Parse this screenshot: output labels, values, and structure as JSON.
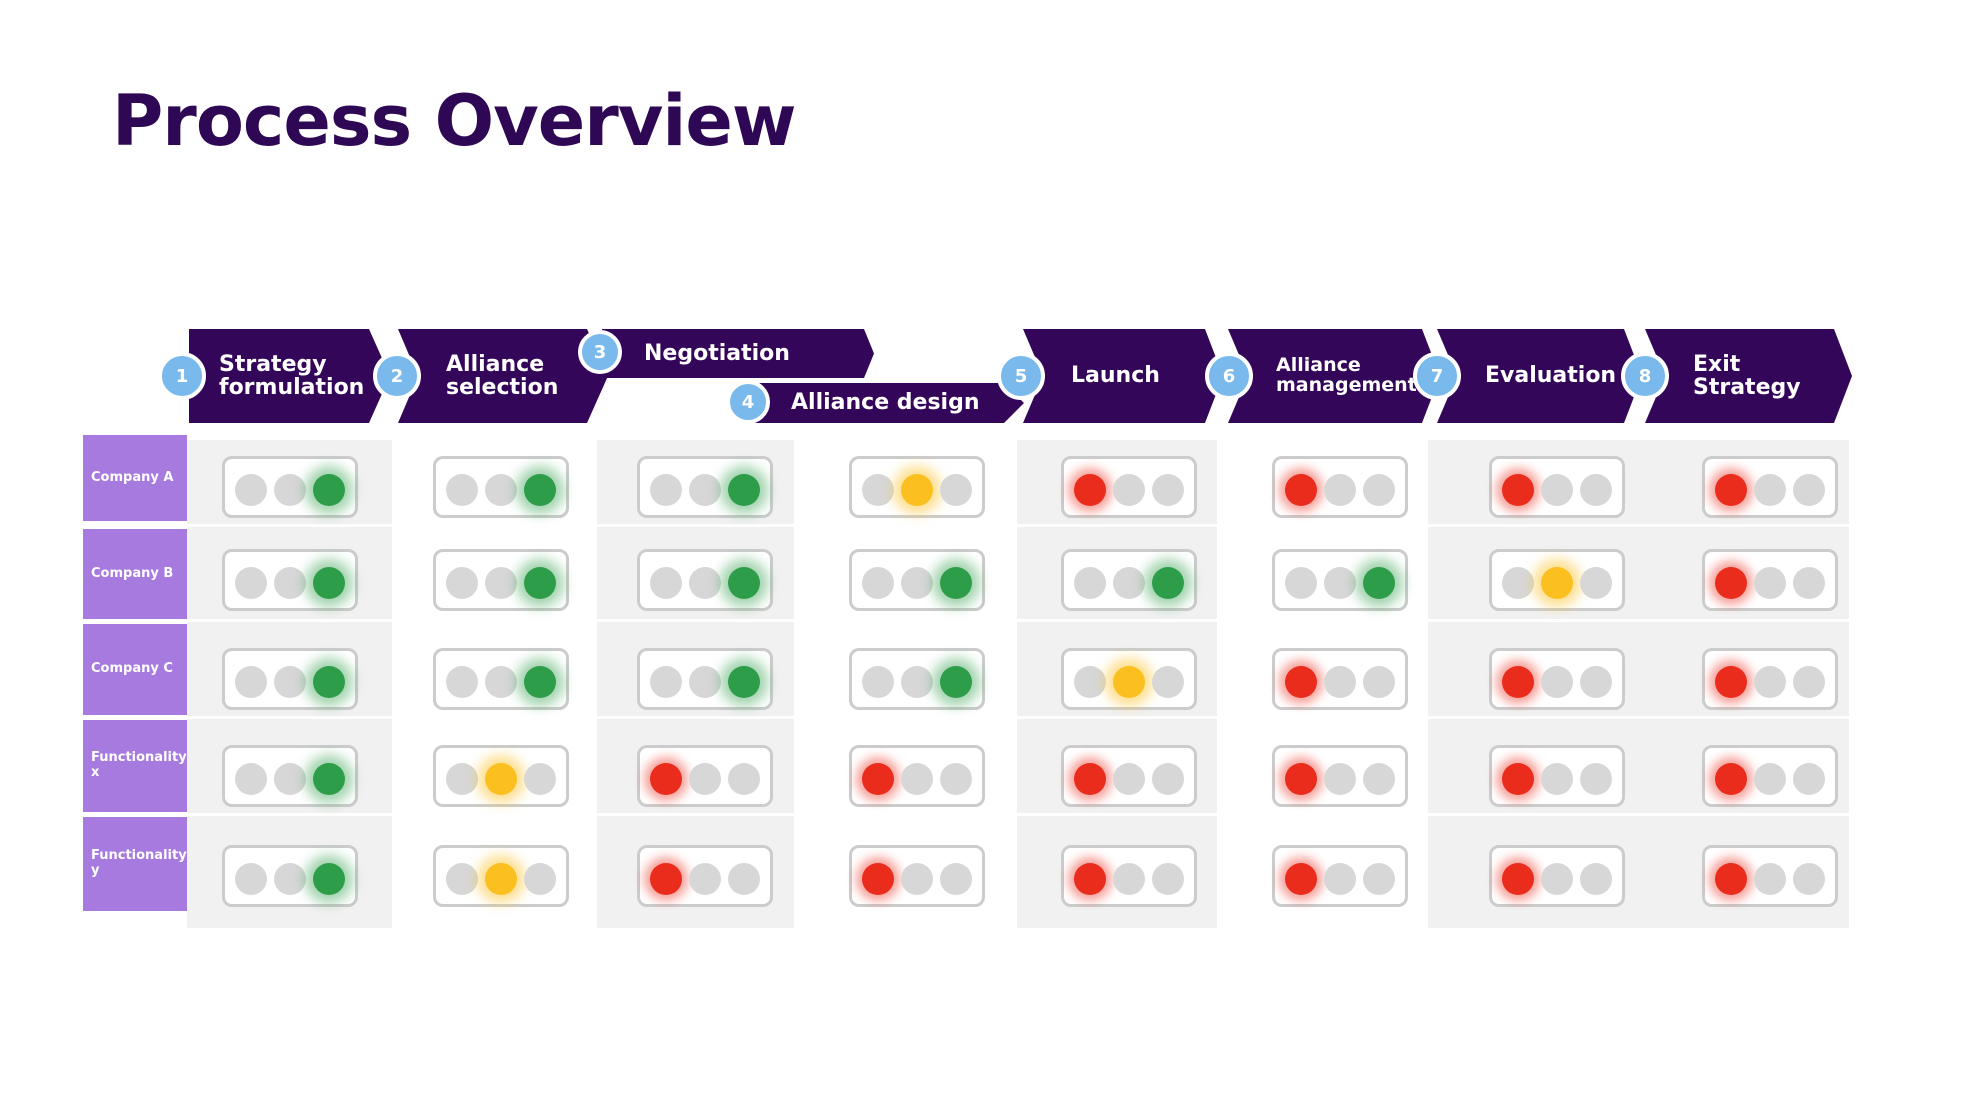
{
  "title": "Process Overview",
  "colors": {
    "chevron": "#33065a",
    "badge": "#7ab9ec",
    "row_label": "#a77ae0",
    "red": "#ea2c1c",
    "amber": "#fbbf1f",
    "green": "#2e9d4a"
  },
  "stages": [
    {
      "number": "1",
      "label": "Strategy\nformulation"
    },
    {
      "number": "2",
      "label": "Alliance\nselection"
    },
    {
      "number": "3",
      "label": "Negotiation"
    },
    {
      "number": "4",
      "label": "Alliance design"
    },
    {
      "number": "5",
      "label": "Launch"
    },
    {
      "number": "6",
      "label": "Alliance\nmanagement"
    },
    {
      "number": "7",
      "label": "Evaluation"
    },
    {
      "number": "8",
      "label": "Exit\nStrategy"
    }
  ],
  "rows": [
    {
      "label": "Company A",
      "statuses": [
        "green",
        "green",
        "green",
        "amber",
        "red",
        "red",
        "red",
        "red"
      ]
    },
    {
      "label": "Company B",
      "statuses": [
        "green",
        "green",
        "green",
        "green",
        "green",
        "green",
        "amber",
        "red"
      ]
    },
    {
      "label": "Company C",
      "statuses": [
        "green",
        "green",
        "green",
        "green",
        "amber",
        "red",
        "red",
        "red"
      ]
    },
    {
      "label": "Functionality\nx",
      "statuses": [
        "green",
        "amber",
        "red",
        "red",
        "red",
        "red",
        "red",
        "red"
      ]
    },
    {
      "label": "Functionality\ny",
      "statuses": [
        "green",
        "amber",
        "red",
        "red",
        "red",
        "red",
        "red",
        "red"
      ]
    }
  ]
}
